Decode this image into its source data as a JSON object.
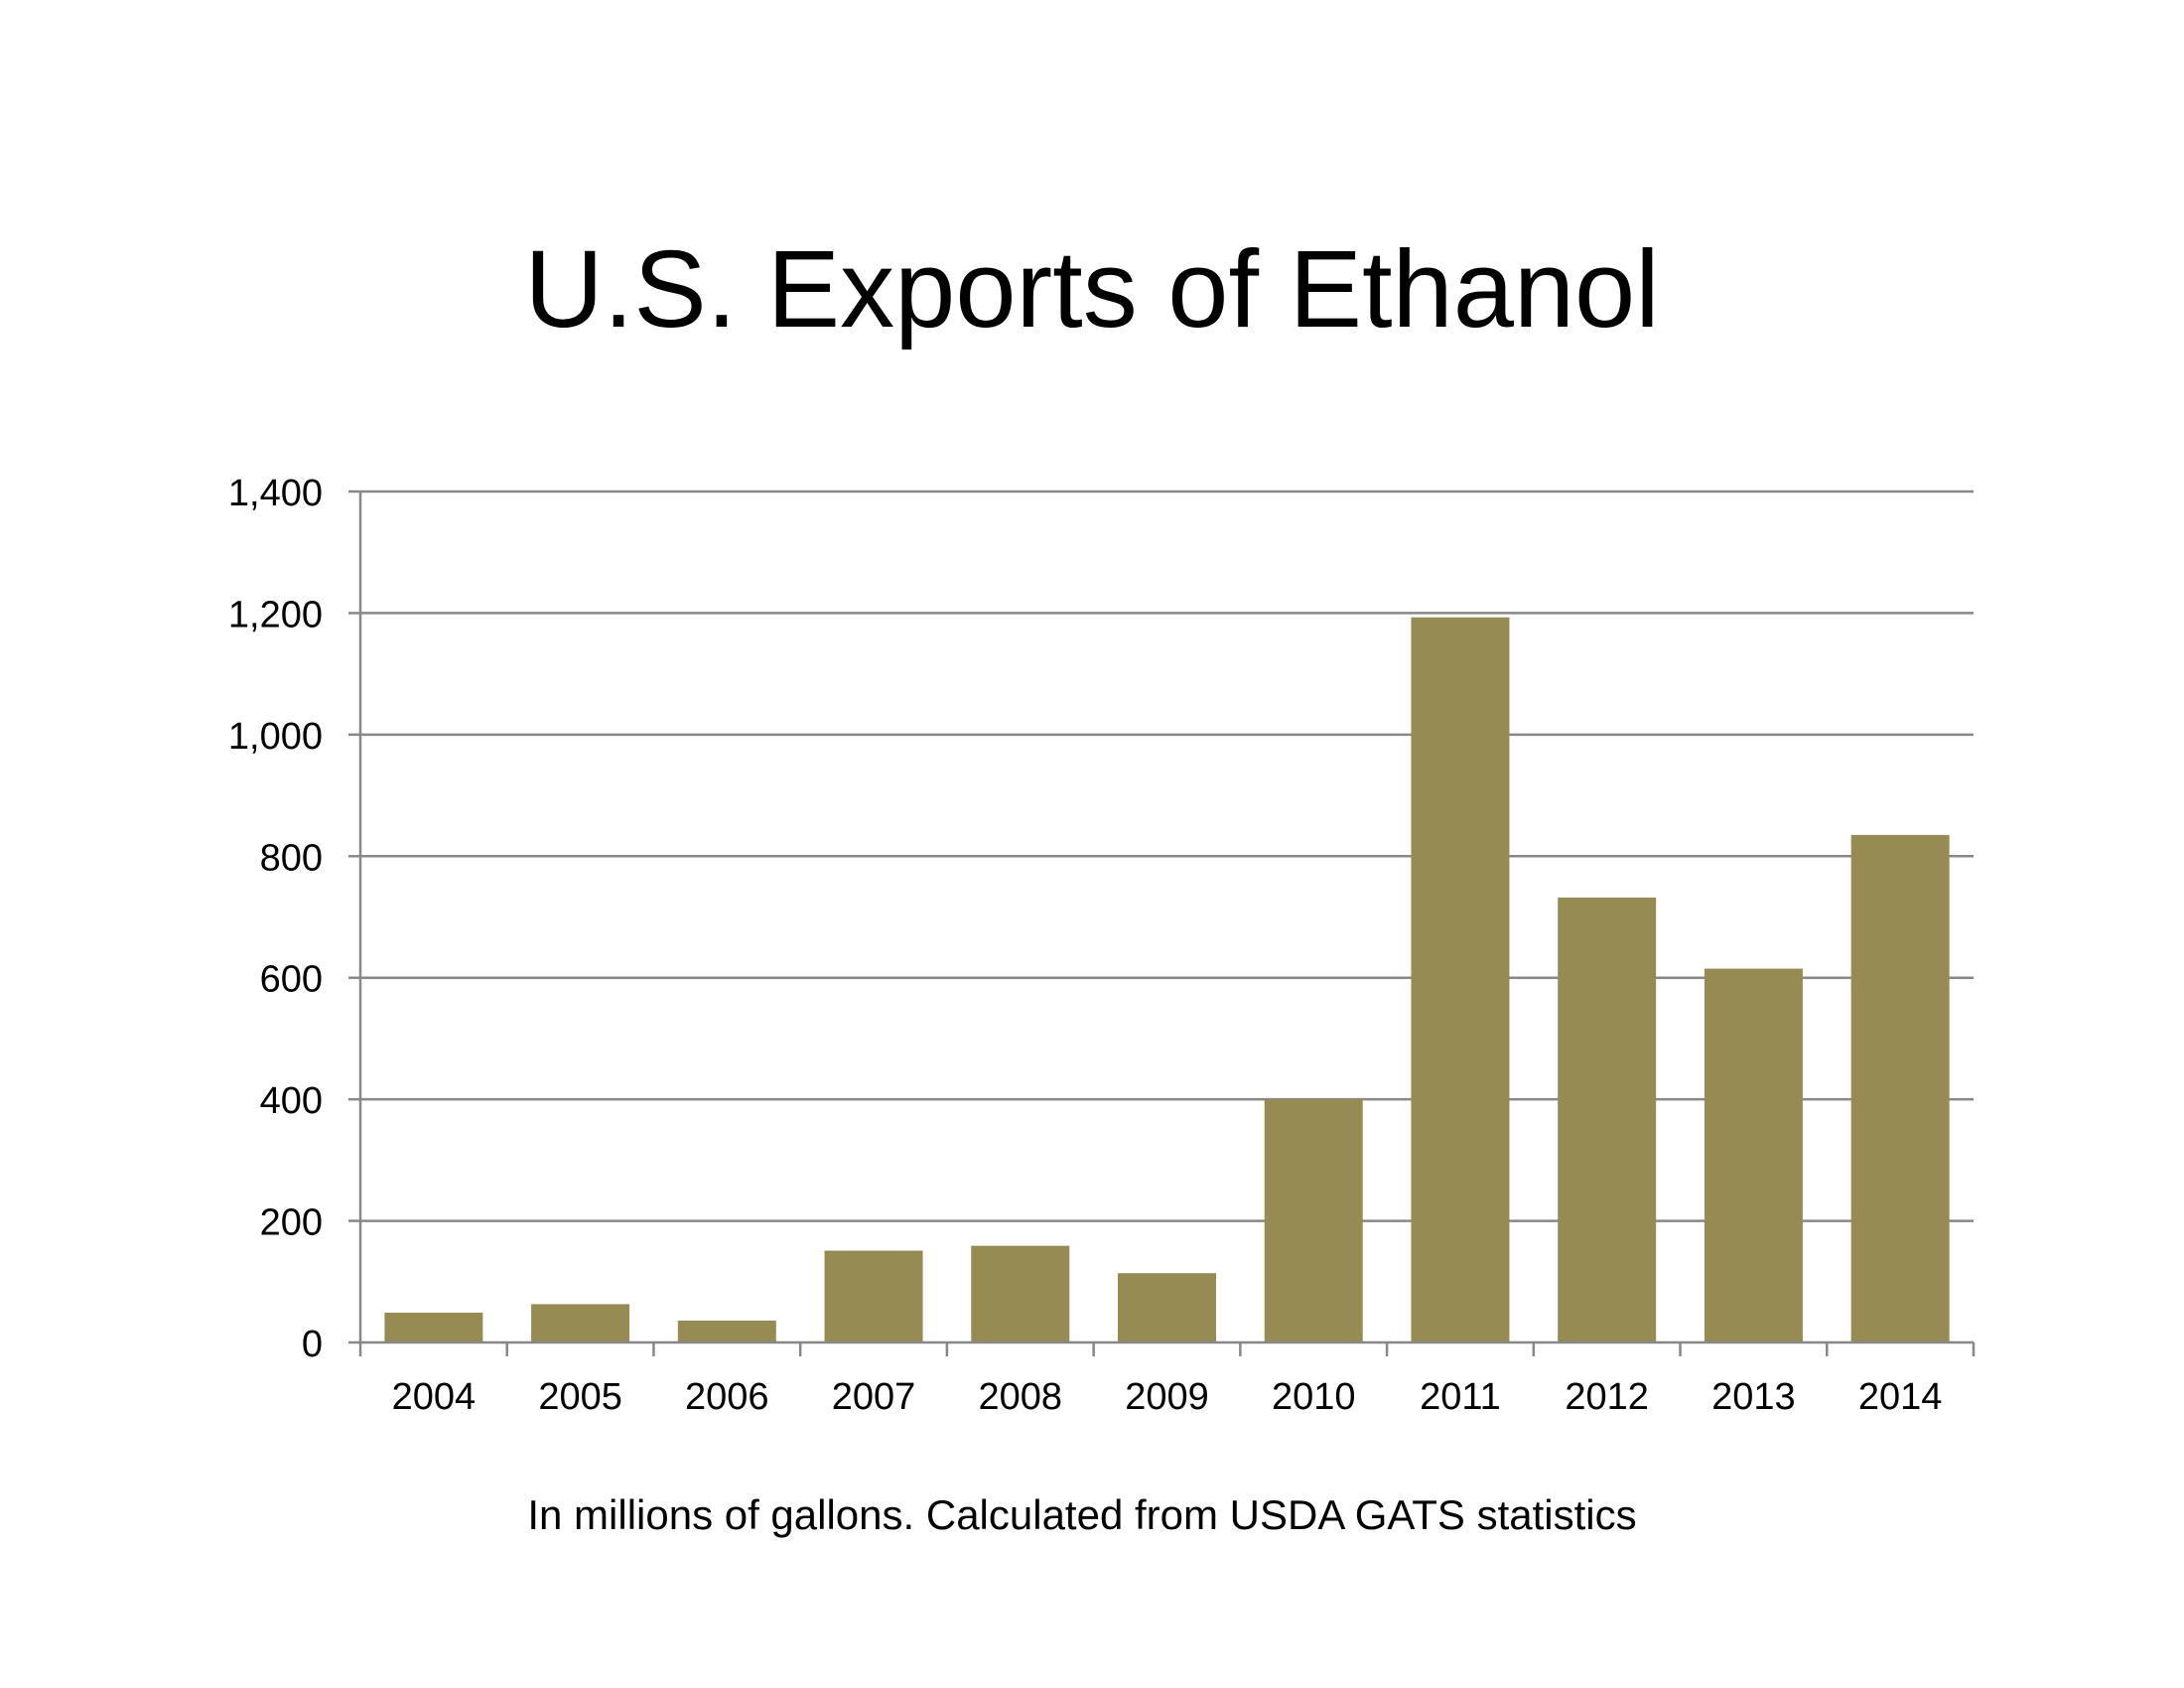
{
  "chart_data": {
    "type": "bar",
    "title": "U.S. Exports of Ethanol",
    "note": "In millions of gallons.  Calculated from USDA GATS statistics",
    "categories": [
      "2004",
      "2005",
      "2006",
      "2007",
      "2008",
      "2009",
      "2010",
      "2011",
      "2012",
      "2013",
      "2014"
    ],
    "values": [
      49,
      63,
      36,
      151,
      159,
      114,
      400,
      1193,
      732,
      615,
      835
    ],
    "ylim": [
      0,
      1400
    ],
    "yticks": [
      0,
      200,
      400,
      600,
      800,
      1000,
      1200,
      1400
    ],
    "ytick_labels": [
      "0",
      "200",
      "400",
      "600",
      "800",
      "1,000",
      "1,200",
      "1,400"
    ],
    "xlabel": "",
    "ylabel": "",
    "grid": true,
    "bar_color": "#978b54",
    "gridline_color": "#888888"
  }
}
